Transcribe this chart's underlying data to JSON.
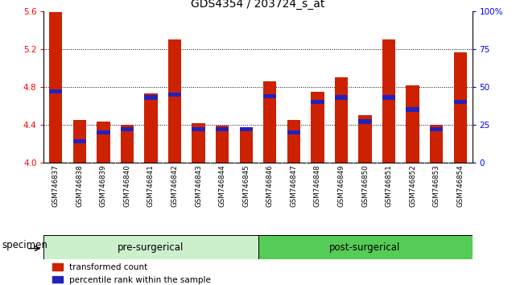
{
  "title": "GDS4354 / 203724_s_at",
  "samples": [
    "GSM746837",
    "GSM746838",
    "GSM746839",
    "GSM746840",
    "GSM746841",
    "GSM746842",
    "GSM746843",
    "GSM746844",
    "GSM746845",
    "GSM746846",
    "GSM746847",
    "GSM746848",
    "GSM746849",
    "GSM746850",
    "GSM746851",
    "GSM746852",
    "GSM746853",
    "GSM746854"
  ],
  "red_values": [
    5.59,
    4.45,
    4.43,
    4.4,
    4.73,
    5.3,
    4.42,
    4.39,
    4.35,
    4.86,
    4.45,
    4.75,
    4.9,
    4.5,
    5.3,
    4.82,
    4.4,
    5.17
  ],
  "blue_values_pct": [
    47,
    14,
    20,
    22,
    43,
    45,
    22,
    22,
    22,
    44,
    20,
    40,
    43,
    27,
    43,
    35,
    22,
    40
  ],
  "ylim_left": [
    4.0,
    5.6
  ],
  "ylim_right": [
    0,
    100
  ],
  "yticks_left": [
    4.0,
    4.4,
    4.8,
    5.2,
    5.6
  ],
  "yticks_right": [
    0,
    25,
    50,
    75,
    100
  ],
  "ytick_labels_right": [
    "0",
    "25",
    "50",
    "75",
    "100%"
  ],
  "pre_group_label": "pre-surgerical",
  "post_group_label": "post-surgerical",
  "pre_group_color": "#ccf0cc",
  "post_group_color": "#55cc55",
  "bar_color_red": "#cc2200",
  "bar_color_blue": "#2222bb",
  "bar_bottom": 4.0,
  "bar_width": 0.55,
  "grid_color": "black",
  "specimen_label": "specimen",
  "legend_red": "transformed count",
  "legend_blue": "percentile rank within the sample",
  "title_fontsize": 10,
  "tick_fontsize": 7.5,
  "label_fontsize": 8.5,
  "group_fontsize": 8.5,
  "pre_count": 9,
  "post_count": 9
}
